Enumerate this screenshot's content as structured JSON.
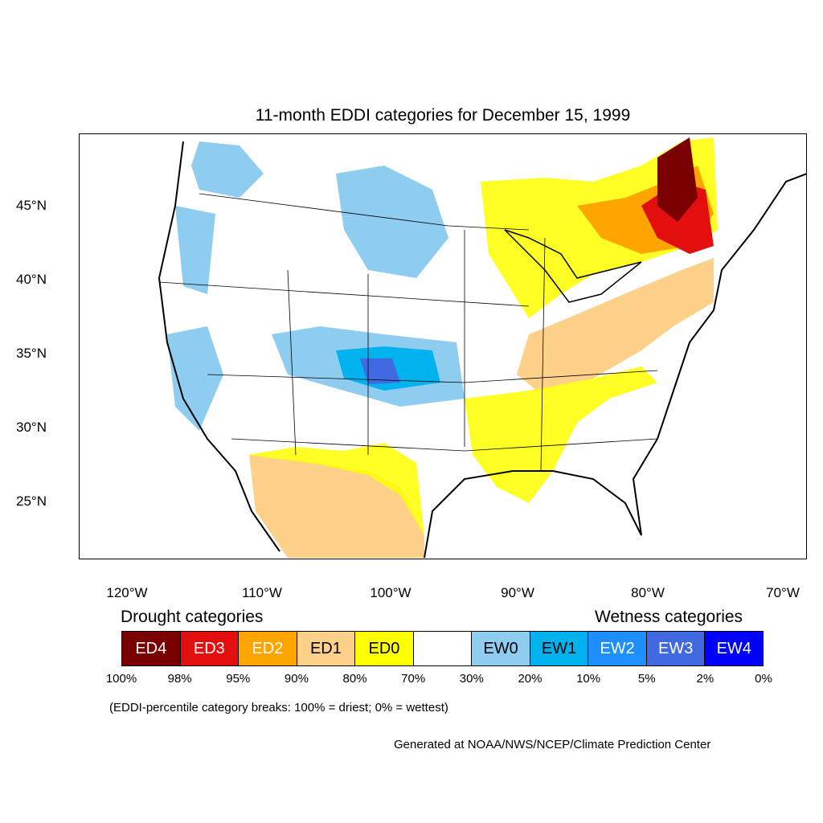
{
  "title": "11-month EDDI categories for December 15, 1999",
  "lat_labels": [
    "45°N",
    "40°N",
    "35°N",
    "30°N",
    "25°N"
  ],
  "lon_labels": [
    "120°W",
    "110°W",
    "100°W",
    "90°W",
    "80°W",
    "70°W"
  ],
  "legend": {
    "drought_title": "Drought categories",
    "wetness_title": "Wetness categories",
    "categories": [
      {
        "label": "ED4",
        "color": "#7a0000",
        "text_color": "#ffffff"
      },
      {
        "label": "ED3",
        "color": "#e30e0e",
        "text_color": "#ffffff"
      },
      {
        "label": "ED2",
        "color": "#ffa500",
        "text_color": "#ffffff"
      },
      {
        "label": "ED1",
        "color": "#fed18b",
        "text_color": "#000000"
      },
      {
        "label": "ED0",
        "color": "#ffff00",
        "text_color": "#000000"
      },
      {
        "label": "",
        "color": "#ffffff",
        "text_color": "#000000"
      },
      {
        "label": "EW0",
        "color": "#8ecdf0",
        "text_color": "#000000"
      },
      {
        "label": "EW1",
        "color": "#00b2ee",
        "text_color": "#000000"
      },
      {
        "label": "EW2",
        "color": "#1e8fff",
        "text_color": "#ffffff"
      },
      {
        "label": "EW3",
        "color": "#4169e1",
        "text_color": "#ffffff"
      },
      {
        "label": "EW4",
        "color": "#0000ff",
        "text_color": "#ffffff"
      }
    ],
    "percentiles": [
      "100%",
      "98%",
      "95%",
      "90%",
      "80%",
      "70%",
      "30%",
      "20%",
      "10%",
      "5%",
      "2%",
      "0%"
    ]
  },
  "note": "(EDDI-percentile category breaks: 100% = driest; 0% = wettest)",
  "credit": "Generated at NOAA/NWS/NCEP/Climate Prediction Center"
}
